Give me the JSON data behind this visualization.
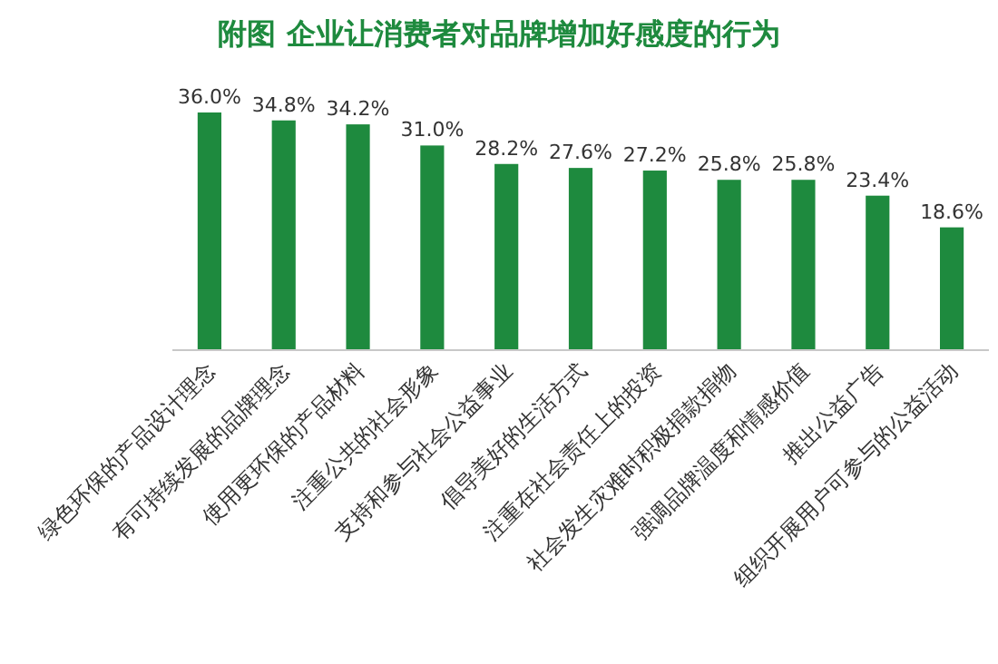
{
  "chart_data": {
    "type": "bar",
    "title": "附图 企业让消费者对品牌增加好感度的行为",
    "categories": [
      "绿色环保的产品设计理念",
      "有可持续发展的品牌理念",
      "使用更环保的产品材料",
      "注重公共的社会形象",
      "支持和参与社会公益事业",
      "倡导美好的生活方式",
      "注重在社会责任上的投资",
      "社会发生灾难时积极捐款捐物",
      "强调品牌温度和情感价值",
      "推出公益广告",
      "组织开展用户可参与的公益活动"
    ],
    "values": [
      36.0,
      34.8,
      34.2,
      31.0,
      28.2,
      27.6,
      27.2,
      25.8,
      25.8,
      23.4,
      18.6
    ],
    "value_labels": [
      "36.0%",
      "34.8%",
      "34.2%",
      "31.0%",
      "28.2%",
      "27.6%",
      "27.2%",
      "25.8%",
      "25.8%",
      "23.4%",
      "18.6%"
    ],
    "color": "#1e8a3e"
  }
}
